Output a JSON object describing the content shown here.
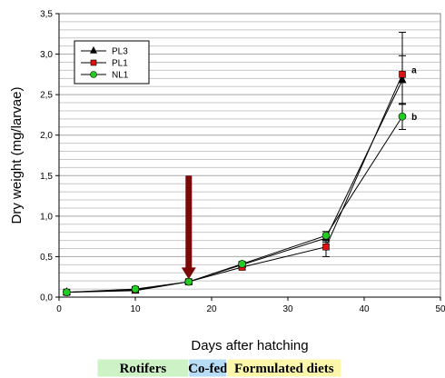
{
  "chart_data": {
    "type": "line",
    "title": "",
    "xlabel": "Days after hatching",
    "ylabel": "Dry weight (mg/larvae)",
    "xlim": [
      0,
      50
    ],
    "ylim": [
      0,
      3.5
    ],
    "x_ticks": [
      "0",
      "10",
      "20",
      "30",
      "40",
      "50"
    ],
    "y_ticks": [
      "0,0",
      "0,5",
      "1,0",
      "1,5",
      "2,0",
      "2,5",
      "3,0",
      "3,5"
    ],
    "grid": "horizontal",
    "legend_position": "top-left",
    "series": [
      {
        "name": "PL3",
        "marker": "triangle",
        "color": "#000000",
        "x": [
          1,
          10,
          17,
          24,
          35,
          45
        ],
        "y": [
          0.06,
          0.08,
          0.19,
          0.4,
          0.73,
          2.68
        ],
        "err": [
          0.01,
          0.03,
          0.02,
          0.03,
          0.05,
          0.3
        ]
      },
      {
        "name": "PL1",
        "marker": "square",
        "color": "#dd1111",
        "x": [
          1,
          10,
          17,
          24,
          35,
          45
        ],
        "y": [
          0.06,
          0.09,
          0.19,
          0.37,
          0.62,
          2.75
        ],
        "err": [
          0.01,
          0.03,
          0.02,
          0.03,
          0.12,
          0.52
        ]
      },
      {
        "name": "NL1",
        "marker": "circle",
        "color": "#22cc22",
        "x": [
          1,
          10,
          17,
          24,
          35,
          45
        ],
        "y": [
          0.06,
          0.1,
          0.19,
          0.41,
          0.76,
          2.23
        ],
        "err": [
          0.01,
          0.03,
          0.02,
          0.03,
          0.05,
          0.16
        ]
      }
    ],
    "annotations": [
      {
        "text": "a",
        "x": 46.2,
        "y": 2.8
      },
      {
        "text": "b",
        "x": 46.2,
        "y": 2.22
      }
    ],
    "arrow": {
      "x": 17,
      "y_start": 1.5,
      "y_end": 0.22,
      "color": "#7a0a0a"
    },
    "phases": [
      {
        "label": "Rotifers",
        "x_start": 5,
        "x_end": 17,
        "color": "#ccf2c6"
      },
      {
        "label": "Co-fed",
        "x_start": 17,
        "x_end": 22,
        "color": "#b7dcf6"
      },
      {
        "label": "Formulated diets",
        "x_start": 22,
        "x_end": 37,
        "color": "#fbf6a9"
      }
    ]
  }
}
